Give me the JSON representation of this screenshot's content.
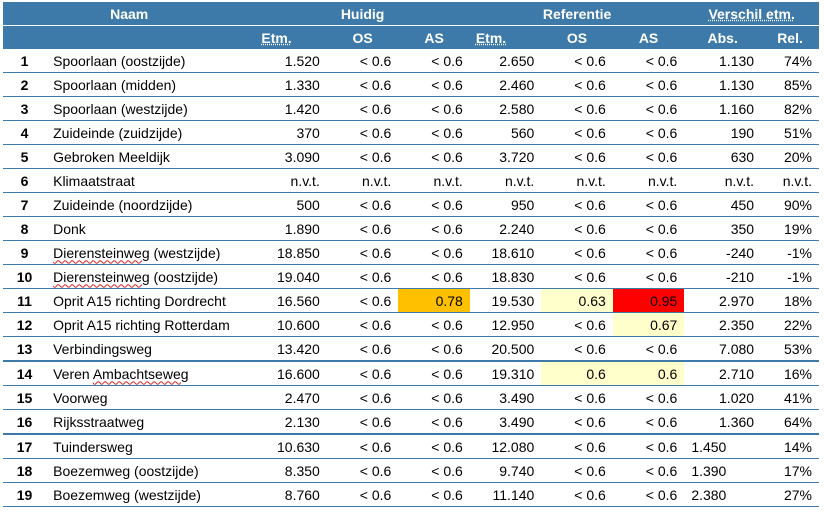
{
  "header": {
    "naam": "Naam",
    "huidig": "Huidig",
    "referentie": "Referentie",
    "verschil": "Verschil etm.",
    "sub": [
      "Etm.",
      "OS",
      "AS",
      "Etm.",
      "OS",
      "AS",
      "Abs.",
      "Rel."
    ]
  },
  "colors": {
    "header_bg": "#3d7aaa",
    "highlight_orange": "#ffc000",
    "highlight_red": "#ff0000",
    "highlight_yellow": "#ffffcc"
  },
  "rows": [
    {
      "n": "1",
      "name": "Spoorlaan (oostzijde)",
      "v": [
        "1.520",
        "< 0.6",
        "< 0.6",
        "2.650",
        "< 0.6",
        "< 0.6",
        "1.130",
        "74%"
      ]
    },
    {
      "n": "2",
      "name": "Spoorlaan (midden)",
      "v": [
        "1.330",
        "< 0.6",
        "< 0.6",
        "2.460",
        "< 0.6",
        "< 0.6",
        "1.130",
        "85%"
      ]
    },
    {
      "n": "3",
      "name": "Spoorlaan (westzijde)",
      "v": [
        "1.420",
        "< 0.6",
        "< 0.6",
        "2.580",
        "< 0.6",
        "< 0.6",
        "1.160",
        "82%"
      ]
    },
    {
      "n": "4",
      "name": "Zuideinde (zuidzijde)",
      "v": [
        "370",
        "< 0.6",
        "< 0.6",
        "560",
        "< 0.6",
        "< 0.6",
        "190",
        "51%"
      ]
    },
    {
      "n": "5",
      "name": "Gebroken Meeldijk",
      "v": [
        "3.090",
        "< 0.6",
        "< 0.6",
        "3.720",
        "< 0.6",
        "< 0.6",
        "630",
        "20%"
      ]
    },
    {
      "n": "6",
      "name": "Klimaatstraat",
      "v": [
        "n.v.t.",
        "n.v.t.",
        "n.v.t.",
        "n.v.t.",
        "n.v.t.",
        "n.v.t.",
        "n.v.t.",
        "n.v.t."
      ]
    },
    {
      "n": "7",
      "name": "Zuideinde (noordzijde)",
      "v": [
        "500",
        "< 0.6",
        "< 0.6",
        "950",
        "< 0.6",
        "< 0.6",
        "450",
        "90%"
      ]
    },
    {
      "n": "8",
      "name": "Donk",
      "v": [
        "1.890",
        "< 0.6",
        "< 0.6",
        "2.240",
        "< 0.6",
        "< 0.6",
        "350",
        "19%"
      ]
    },
    {
      "n": "9",
      "name": "Dierensteinweg (westzijde)",
      "v": [
        "18.850",
        "< 0.6",
        "< 0.6",
        "18.610",
        "< 0.6",
        "< 0.6",
        "-240",
        "-1%"
      ]
    },
    {
      "n": "10",
      "name": "Dierensteinweg (oostzijde)",
      "v": [
        "19.040",
        "< 0.6",
        "< 0.6",
        "18.830",
        "< 0.6",
        "< 0.6",
        "-210",
        "-1%"
      ]
    },
    {
      "n": "11",
      "name": "Oprit A15 richting Dordrecht",
      "v": [
        "16.560",
        "< 0.6",
        "0.78",
        "19.530",
        "0.63",
        "0.95",
        "2.970",
        "18%"
      ]
    },
    {
      "n": "12",
      "name": "Oprit A15 richting Rotterdam",
      "v": [
        "10.600",
        "< 0.6",
        "< 0.6",
        "12.950",
        "< 0.6",
        "0.67",
        "2.350",
        "22%"
      ]
    },
    {
      "n": "13",
      "name": "Verbindingsweg",
      "v": [
        "13.420",
        "< 0.6",
        "< 0.6",
        "20.500",
        "< 0.6",
        "< 0.6",
        "7.080",
        "53%"
      ]
    },
    {
      "n": "14",
      "name": "Veren Ambachtseweg",
      "v": [
        "16.600",
        "< 0.6",
        "< 0.6",
        "19.310",
        "0.6",
        "0.6",
        "2.710",
        "16%"
      ]
    },
    {
      "n": "15",
      "name": "Voorweg",
      "v": [
        "2.470",
        "< 0.6",
        "< 0.6",
        "3.490",
        "< 0.6",
        "< 0.6",
        "1.020",
        "41%"
      ]
    },
    {
      "n": "16",
      "name": "Rijksstraatweg",
      "v": [
        "2.130",
        "< 0.6",
        "< 0.6",
        "3.490",
        "< 0.6",
        "< 0.6",
        "1.360",
        "64%"
      ]
    },
    {
      "n": "17",
      "name": "Tuindersweg",
      "v": [
        "10.630",
        "< 0.6",
        "< 0.6",
        "12.080",
        "< 0.6",
        "< 0.6",
        "1.450",
        "14%"
      ]
    },
    {
      "n": "18",
      "name": "Boezemweg (oostzijde)",
      "v": [
        "8.350",
        "< 0.6",
        "< 0.6",
        "9.740",
        "< 0.6",
        "< 0.6",
        "1.390",
        "17%"
      ]
    },
    {
      "n": "19",
      "name": "Boezemweg (westzijde)",
      "v": [
        "8.760",
        "< 0.6",
        "< 0.6",
        "11.140",
        "< 0.6",
        "< 0.6",
        "2.380",
        "27%"
      ]
    }
  ]
}
